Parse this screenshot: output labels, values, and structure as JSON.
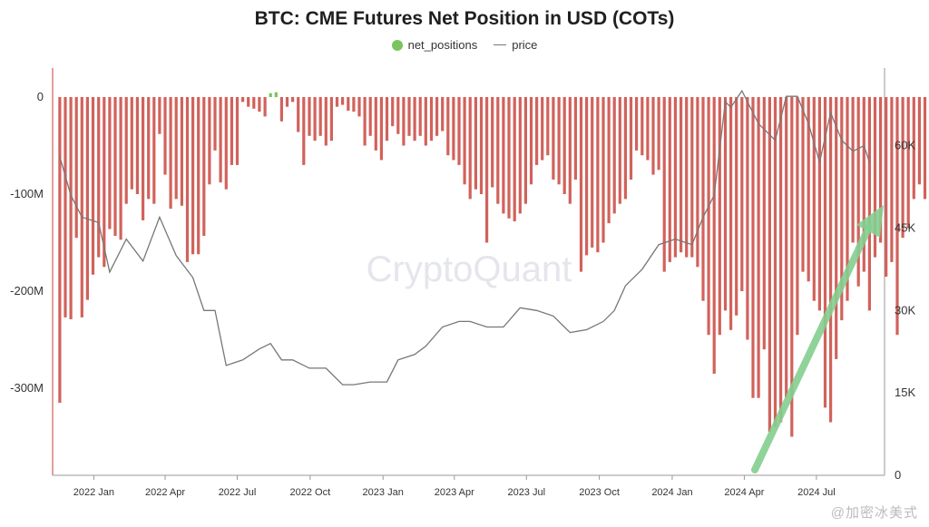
{
  "chart_data": {
    "type": "bar",
    "title": "BTC: CME Futures Net Position in USD (COTs)",
    "legend_position": "top-center",
    "grid": false,
    "series": [
      {
        "name": "net_positions",
        "type": "bar",
        "color": "#d1625b",
        "positive_color": "#7cc35f",
        "values": [
          -315,
          -227,
          -229,
          -145,
          -227,
          -209,
          -183,
          -165,
          -175,
          -136,
          -143,
          -147,
          -110,
          -95,
          -100,
          -127,
          -105,
          -110,
          -38,
          -80,
          -115,
          -105,
          -112,
          -170,
          -162,
          -162,
          -143,
          -90,
          -55,
          -88,
          -95,
          -70,
          -70,
          -5,
          -10,
          -12,
          -15,
          -20,
          4,
          5,
          -25,
          -10,
          -5,
          -36,
          -70,
          -40,
          -45,
          -40,
          -50,
          -45,
          -10,
          -8,
          -14,
          -15,
          -20,
          -50,
          -40,
          -55,
          -65,
          -45,
          -30,
          -38,
          -50,
          -40,
          -45,
          -40,
          -50,
          -45,
          -40,
          -35,
          -60,
          -65,
          -70,
          -90,
          -105,
          -95,
          -100,
          -150,
          -93,
          -110,
          -120,
          -125,
          -128,
          -120,
          -110,
          -90,
          -70,
          -65,
          -60,
          -85,
          -90,
          -100,
          -110,
          -85,
          -180,
          -163,
          -155,
          -160,
          -150,
          -130,
          -120,
          -110,
          -105,
          -85,
          -55,
          -60,
          -65,
          -80,
          -75,
          -180,
          -170,
          -165,
          -160,
          -165,
          -165,
          -175,
          -210,
          -245,
          -285,
          -245,
          -220,
          -240,
          -225,
          -200,
          -250,
          -310,
          -310,
          -260,
          -345,
          -340,
          -335,
          -310,
          -350,
          -245,
          -180,
          -190,
          -210,
          -220,
          -320,
          -335,
          -270,
          -230,
          -210,
          -150,
          -195,
          -180,
          -220,
          -165,
          -150,
          -185,
          -170,
          -245,
          -145,
          -135,
          -105,
          -90,
          -105,
          -110,
          -90
        ],
        "x_start": "2021-11-19",
        "x_step_days": 7
      },
      {
        "name": "price",
        "type": "line",
        "color": "#777777",
        "points": [
          [
            "2021-11-19",
            58
          ],
          [
            "2021-12-03",
            51
          ],
          [
            "2021-12-17",
            47
          ],
          [
            "2022-01-07",
            46
          ],
          [
            "2022-01-21",
            37
          ],
          [
            "2022-02-11",
            43
          ],
          [
            "2022-03-04",
            39
          ],
          [
            "2022-03-25",
            47
          ],
          [
            "2022-04-15",
            40
          ],
          [
            "2022-05-06",
            36
          ],
          [
            "2022-05-20",
            30
          ],
          [
            "2022-06-03",
            30
          ],
          [
            "2022-06-17",
            20
          ],
          [
            "2022-07-08",
            21
          ],
          [
            "2022-07-29",
            23
          ],
          [
            "2022-08-12",
            24
          ],
          [
            "2022-08-26",
            21
          ],
          [
            "2022-09-09",
            21
          ],
          [
            "2022-09-30",
            19.5
          ],
          [
            "2022-10-21",
            19.5
          ],
          [
            "2022-11-11",
            16.5
          ],
          [
            "2022-11-25",
            16.5
          ],
          [
            "2022-12-16",
            17
          ],
          [
            "2023-01-06",
            17
          ],
          [
            "2023-01-20",
            21
          ],
          [
            "2023-02-10",
            22
          ],
          [
            "2023-02-24",
            23.5
          ],
          [
            "2023-03-17",
            27
          ],
          [
            "2023-04-07",
            28
          ],
          [
            "2023-04-21",
            28
          ],
          [
            "2023-05-12",
            27
          ],
          [
            "2023-06-02",
            27
          ],
          [
            "2023-06-23",
            30.5
          ],
          [
            "2023-07-14",
            30
          ],
          [
            "2023-08-04",
            29
          ],
          [
            "2023-08-25",
            26
          ],
          [
            "2023-09-15",
            26.5
          ],
          [
            "2023-10-06",
            28
          ],
          [
            "2023-10-20",
            30
          ],
          [
            "2023-11-03",
            34.5
          ],
          [
            "2023-11-24",
            37.5
          ],
          [
            "2023-12-15",
            42
          ],
          [
            "2024-01-05",
            43
          ],
          [
            "2024-01-26",
            42
          ],
          [
            "2024-02-09",
            47
          ],
          [
            "2024-02-23",
            51
          ],
          [
            "2024-03-08",
            68
          ],
          [
            "2024-03-15",
            67
          ],
          [
            "2024-03-29",
            70
          ],
          [
            "2024-04-19",
            64
          ],
          [
            "2024-05-10",
            61
          ],
          [
            "2024-05-24",
            69
          ],
          [
            "2024-06-07",
            69
          ],
          [
            "2024-06-21",
            64
          ],
          [
            "2024-07-05",
            57
          ],
          [
            "2024-07-19",
            66
          ],
          [
            "2024-08-02",
            61
          ],
          [
            "2024-08-16",
            59
          ],
          [
            "2024-08-30",
            60
          ],
          [
            "2024-09-06",
            57
          ]
        ]
      }
    ],
    "y_left": {
      "ticks": [
        0,
        -100,
        -200,
        -300
      ],
      "tick_labels": [
        "0",
        "-100M",
        "-200M",
        "-300M"
      ],
      "range": [
        -385,
        0
      ],
      "unit": "M USD"
    },
    "y_right": {
      "ticks": [
        0,
        15,
        30,
        45,
        60
      ],
      "tick_labels": [
        "0",
        "15K",
        "30K",
        "45K",
        "60K"
      ],
      "range": [
        0,
        72
      ],
      "unit": "K USD"
    },
    "x_axis": {
      "tick_dates": [
        "2022-01-01",
        "2022-04-01",
        "2022-07-01",
        "2022-10-01",
        "2023-01-01",
        "2023-04-01",
        "2023-07-01",
        "2023-10-01",
        "2024-01-01",
        "2024-04-01",
        "2024-07-01"
      ],
      "tick_labels": [
        "2022 Jan",
        "2022 Apr",
        "2022 Jul",
        "2022 Oct",
        "2023 Jan",
        "2023 Apr",
        "2023 Jul",
        "2023 Oct",
        "2024 Jan",
        "2024 Apr",
        "2024 Jul"
      ],
      "range": [
        "2021-11-10",
        "2024-09-25"
      ]
    },
    "watermark": "CryptoQuant",
    "annotation_arrow_color": "#85cf90"
  },
  "footer": {
    "weibo_mark": "@加密冰美式"
  }
}
